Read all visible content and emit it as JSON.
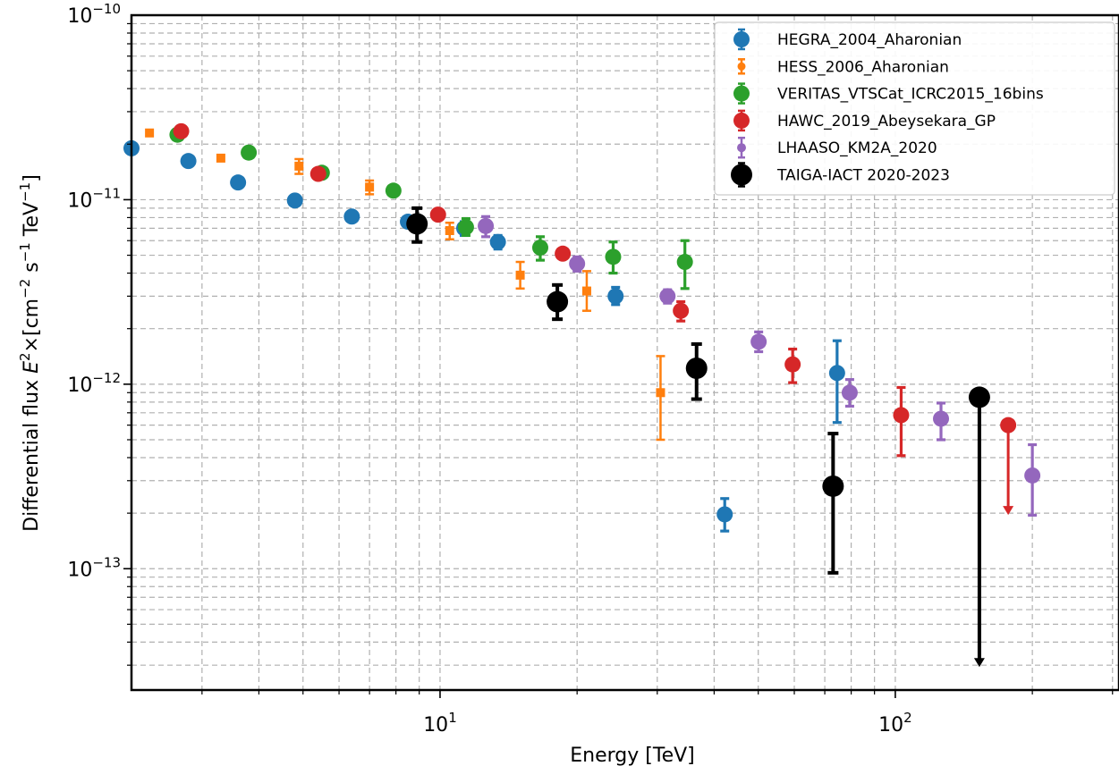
{
  "chart_data": {
    "type": "scatter",
    "xlabel": "Energy [TeV]",
    "ylabel": {
      "prefix": "Differential flux  ",
      "var": "E",
      "var_exp": "2",
      "mid": "×[cm",
      "cm_exp": "−2",
      "s": " s",
      "s_exp": "−1",
      "tev": " TeV",
      "tev_exp": "−1",
      "close": "]"
    },
    "x_scale": "log",
    "y_scale": "log",
    "xlim": [
      2.1,
      310
    ],
    "ylim": [
      2.2e-14,
      1e-10
    ],
    "grid": true,
    "legend_position": "top-right",
    "x_ticks": [
      {
        "base": "10",
        "exp": "1",
        "value": 10
      },
      {
        "base": "10",
        "exp": "2",
        "value": 100
      }
    ],
    "y_ticks": [
      {
        "base": "10",
        "exp": "−10",
        "value": 1e-10
      },
      {
        "base": "10",
        "exp": "−11",
        "value": 1e-11
      },
      {
        "base": "10",
        "exp": "−12",
        "value": 1e-12
      },
      {
        "base": "10",
        "exp": "−13",
        "value": 1e-13
      }
    ],
    "series": [
      {
        "name": "HEGRA_2004_Aharonian",
        "color": "#1f77b4",
        "marker": "circle",
        "points": [
          {
            "x": 2.1,
            "y": 1.9e-11
          },
          {
            "x": 2.8,
            "y": 1.62e-11
          },
          {
            "x": 3.6,
            "y": 1.24e-11
          },
          {
            "x": 4.8,
            "y": 9.9e-12
          },
          {
            "x": 6.4,
            "y": 8.1e-12
          },
          {
            "x": 8.5,
            "y": 7.6e-12
          },
          {
            "x": 11.3,
            "y": 7e-12,
            "lo": 6.4e-12,
            "hi": 7.6e-12
          },
          {
            "x": 13.4,
            "y": 5.9e-12,
            "lo": 5.4e-12,
            "hi": 6.4e-12
          },
          {
            "x": 24.3,
            "y": 3e-12,
            "lo": 2.7e-12,
            "hi": 3.35e-12
          },
          {
            "x": 42.2,
            "y": 1.97e-13,
            "lo": 1.6e-13,
            "hi": 2.4e-13
          },
          {
            "x": 74.5,
            "y": 1.15e-12,
            "lo": 6.2e-13,
            "hi": 1.72e-12
          }
        ]
      },
      {
        "name": "HESS_2006_Aharonian",
        "color": "#ff7f0e",
        "marker": "square",
        "points": [
          {
            "x": 2.3,
            "y": 2.3e-11
          },
          {
            "x": 3.3,
            "y": 1.68e-11
          },
          {
            "x": 4.9,
            "y": 1.52e-11,
            "lo": 1.38e-11,
            "hi": 1.66e-11
          },
          {
            "x": 7.0,
            "y": 1.17e-11,
            "lo": 1.07e-11,
            "hi": 1.27e-11
          },
          {
            "x": 10.5,
            "y": 6.8e-12,
            "lo": 6.1e-12,
            "hi": 7.5e-12
          },
          {
            "x": 15.0,
            "y": 3.9e-12,
            "lo": 3.3e-12,
            "hi": 4.6e-12
          },
          {
            "x": 21.0,
            "y": 3.2e-12,
            "lo": 2.5e-12,
            "hi": 4.1e-12
          },
          {
            "x": 30.5,
            "y": 9e-13,
            "lo": 5e-13,
            "hi": 1.42e-12
          }
        ]
      },
      {
        "name": "VERITAS_VTSCat_ICRC2015_16bins",
        "color": "#2ca02c",
        "marker": "circle",
        "points": [
          {
            "x": 2.65,
            "y": 2.25e-11
          },
          {
            "x": 3.8,
            "y": 1.8e-11
          },
          {
            "x": 5.5,
            "y": 1.4e-11
          },
          {
            "x": 7.9,
            "y": 1.12e-11
          },
          {
            "x": 11.4,
            "y": 7.1e-12,
            "lo": 6.4e-12,
            "hi": 7.9e-12
          },
          {
            "x": 16.6,
            "y": 5.5e-12,
            "lo": 4.7e-12,
            "hi": 6.3e-12
          },
          {
            "x": 24.0,
            "y": 4.9e-12,
            "lo": 4e-12,
            "hi": 5.9e-12
          },
          {
            "x": 34.5,
            "y": 4.6e-12,
            "lo": 3.3e-12,
            "hi": 6e-12
          }
        ]
      },
      {
        "name": "HAWC_2019_Abeysekara_GP",
        "color": "#d62728",
        "marker": "circle",
        "points": [
          {
            "x": 2.7,
            "y": 2.35e-11
          },
          {
            "x": 5.4,
            "y": 1.38e-11
          },
          {
            "x": 9.9,
            "y": 8.3e-12
          },
          {
            "x": 18.6,
            "y": 5.1e-12
          },
          {
            "x": 33.8,
            "y": 2.5e-12,
            "lo": 2.2e-12,
            "hi": 2.8e-12
          },
          {
            "x": 59.5,
            "y": 1.28e-12,
            "lo": 1.02e-12,
            "hi": 1.55e-12
          },
          {
            "x": 103,
            "y": 6.8e-13,
            "lo": 4.1e-13,
            "hi": 9.6e-13
          },
          {
            "x": 177,
            "y": 6e-13,
            "upper_limit_to": 2e-13
          }
        ]
      },
      {
        "name": "LHAASO_KM2A_2020",
        "color": "#9467bd",
        "marker": "circle",
        "points": [
          {
            "x": 12.6,
            "y": 7.2e-12,
            "lo": 6.3e-12,
            "hi": 8.1e-12
          },
          {
            "x": 20.0,
            "y": 4.5e-12,
            "lo": 4.1e-12,
            "hi": 4.9e-12
          },
          {
            "x": 31.6,
            "y": 3e-12,
            "lo": 2.75e-12,
            "hi": 3.25e-12
          },
          {
            "x": 50.1,
            "y": 1.7e-12,
            "lo": 1.5e-12,
            "hi": 1.92e-12
          },
          {
            "x": 79.4,
            "y": 9e-13,
            "lo": 7.6e-13,
            "hi": 1.06e-12
          },
          {
            "x": 126,
            "y": 6.5e-13,
            "lo": 5e-13,
            "hi": 7.9e-13
          },
          {
            "x": 200,
            "y": 3.2e-13,
            "lo": 1.95e-13,
            "hi": 4.7e-13
          }
        ]
      },
      {
        "name": "TAIGA-IACT 2020-2023",
        "color": "#000000",
        "marker": "circle-large",
        "points": [
          {
            "x": 8.9,
            "y": 7.4e-12,
            "lo": 5.9e-12,
            "hi": 9e-12
          },
          {
            "x": 18.1,
            "y": 2.8e-12,
            "lo": 2.25e-12,
            "hi": 3.45e-12
          },
          {
            "x": 36.6,
            "y": 1.22e-12,
            "lo": 8.3e-13,
            "hi": 1.65e-12
          },
          {
            "x": 73.0,
            "y": 2.8e-13,
            "lo": 9.5e-14,
            "hi": 5.4e-13
          },
          {
            "x": 153,
            "y": 8.5e-13,
            "upper_limit_to": 3e-14
          }
        ]
      }
    ]
  }
}
